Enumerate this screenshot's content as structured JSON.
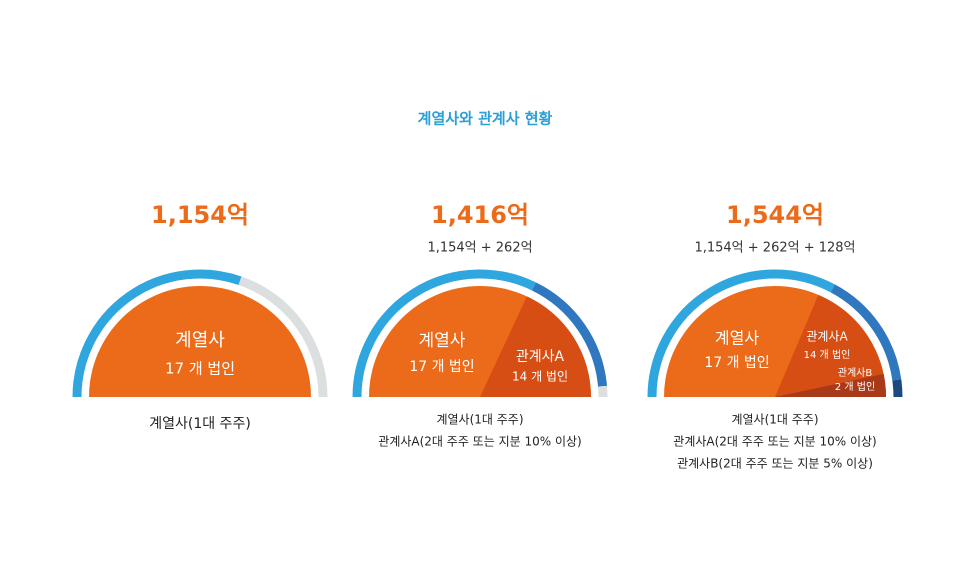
{
  "title": "계열사와 관계사 현황",
  "panels": [
    {
      "total": "1,154억",
      "formula": null,
      "inner": [
        {
          "name": "계열사",
          "count": "17 개 법인"
        }
      ],
      "captions": [
        "계열사(1대 주주)"
      ]
    },
    {
      "total": "1,416억",
      "formula": "1,154억 + 262억",
      "inner": [
        {
          "name": "계열사",
          "count": "17 개 법인"
        },
        {
          "name": "관계사A",
          "count": "14 개 법인"
        }
      ],
      "captions": [
        "계열사(1대 주주)",
        "관계사A(2대 주주 또는 지분 10% 이상)"
      ]
    },
    {
      "total": "1,544억",
      "formula": "1,154억 + 262억 + 128억",
      "inner": [
        {
          "name": "계열사",
          "count": "17 개 법인"
        },
        {
          "name": "관계사A",
          "count": "14 개 법인"
        },
        {
          "name": "관계사B",
          "count": "2 개 법인"
        }
      ],
      "captions": [
        "계열사(1대 주주)",
        "관계사A(2대 주주 또는 지분 10% 이상)",
        "관계사B(2대 주주 또는 지분 5% 이상)"
      ]
    }
  ]
}
